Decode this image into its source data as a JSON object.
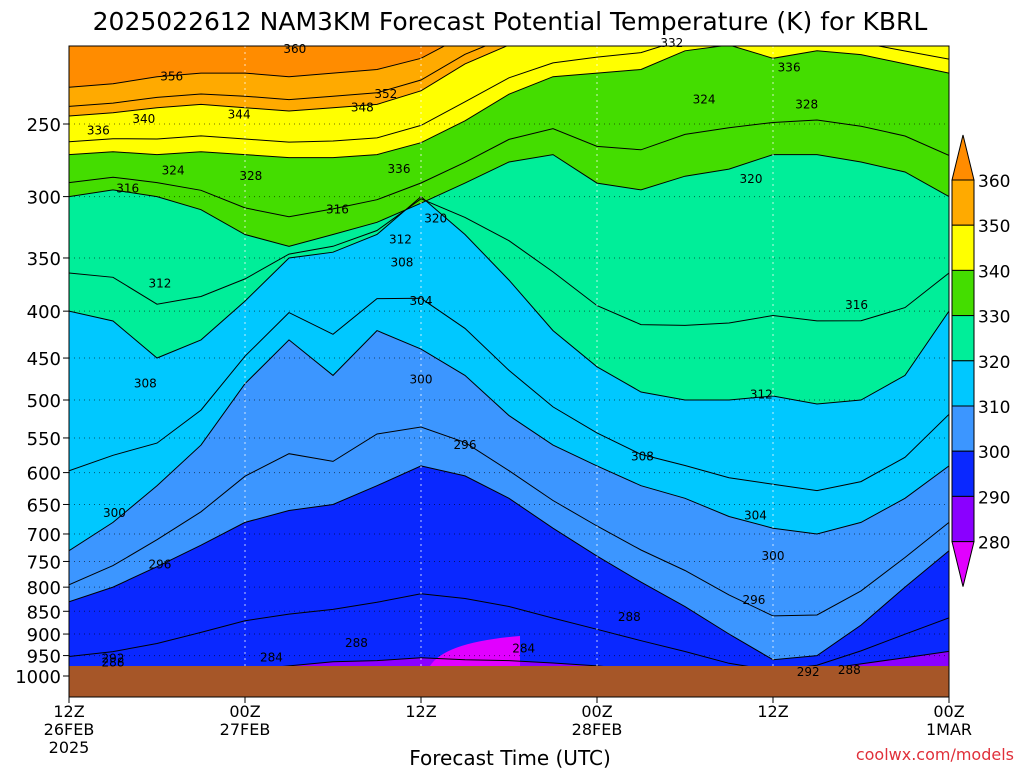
{
  "title": "2025022612 NAM3KM Forecast Potential Temperature (K) for KBRL",
  "credit": "coolwx.com/models",
  "chart_data": {
    "type": "contour-fill",
    "title": "2025022612 NAM3KM Forecast Potential Temperature (K) for KBRL",
    "xlabel": "Forecast Time (UTC)",
    "ylabel": "",
    "x_ticks": [
      {
        "hour": 0,
        "lines": [
          "12Z",
          "26FEB",
          "2025"
        ]
      },
      {
        "hour": 12,
        "lines": [
          "00Z",
          "27FEB"
        ]
      },
      {
        "hour": 24,
        "lines": [
          "12Z"
        ]
      },
      {
        "hour": 36,
        "lines": [
          "00Z",
          "28FEB"
        ]
      },
      {
        "hour": 48,
        "lines": [
          "12Z"
        ]
      },
      {
        "hour": 60,
        "lines": [
          "00Z",
          "1MAR"
        ]
      }
    ],
    "xlim": [
      0,
      60
    ],
    "y_ticks": [
      "250",
      "300",
      "350",
      "400",
      "450",
      "500",
      "550",
      "600",
      "650",
      "700",
      "750",
      "800",
      "850",
      "900",
      "950",
      "1000"
    ],
    "ylim": [
      1025,
      200
    ],
    "grid": "dotted",
    "colorbar": {
      "labels": [
        "360",
        "350",
        "340",
        "330",
        "320",
        "310",
        "300",
        "290",
        "280"
      ],
      "colors": [
        "#ff8c00",
        "#ffaa00",
        "#ffff00",
        "#44dd00",
        "#00ee99",
        "#00c8ff",
        "#3c96ff",
        "#0a28ff",
        "#8a00ff",
        "#e100ff"
      ]
    },
    "contour_labels": [
      {
        "text": "360",
        "hour": 15.4,
        "p": 207
      },
      {
        "text": "356",
        "hour": 7.0,
        "p": 222
      },
      {
        "text": "352",
        "hour": 21.6,
        "p": 232
      },
      {
        "text": "348",
        "hour": 20.0,
        "p": 240
      },
      {
        "text": "344",
        "hour": 11.6,
        "p": 244
      },
      {
        "text": "340",
        "hour": 5.1,
        "p": 247
      },
      {
        "text": "336",
        "hour": 2.0,
        "p": 254
      },
      {
        "text": "336",
        "hour": 22.5,
        "p": 280
      },
      {
        "text": "336",
        "hour": 49.1,
        "p": 217
      },
      {
        "text": "332",
        "hour": 41.1,
        "p": 204
      },
      {
        "text": "328",
        "hour": 12.4,
        "p": 285
      },
      {
        "text": "328",
        "hour": 50.3,
        "p": 238
      },
      {
        "text": "324",
        "hour": 7.1,
        "p": 281
      },
      {
        "text": "324",
        "hour": 43.3,
        "p": 235
      },
      {
        "text": "320",
        "hour": 25.0,
        "p": 317
      },
      {
        "text": "320",
        "hour": 46.5,
        "p": 287
      },
      {
        "text": "316",
        "hour": 4.0,
        "p": 294
      },
      {
        "text": "316",
        "hour": 18.3,
        "p": 310
      },
      {
        "text": "316",
        "hour": 53.7,
        "p": 394
      },
      {
        "text": "312",
        "hour": 6.2,
        "p": 373
      },
      {
        "text": "312",
        "hour": 22.6,
        "p": 334
      },
      {
        "text": "312",
        "hour": 47.2,
        "p": 493
      },
      {
        "text": "308",
        "hour": 22.7,
        "p": 354
      },
      {
        "text": "308",
        "hour": 5.2,
        "p": 480
      },
      {
        "text": "308",
        "hour": 39.1,
        "p": 576
      },
      {
        "text": "304",
        "hour": 24.0,
        "p": 390
      },
      {
        "text": "304",
        "hour": 46.8,
        "p": 668
      },
      {
        "text": "300",
        "hour": 24.0,
        "p": 475
      },
      {
        "text": "300",
        "hour": 3.1,
        "p": 664
      },
      {
        "text": "300",
        "hour": 48.0,
        "p": 740
      },
      {
        "text": "296",
        "hour": 27.0,
        "p": 560
      },
      {
        "text": "296",
        "hour": 6.2,
        "p": 756
      },
      {
        "text": "296",
        "hour": 46.7,
        "p": 826
      },
      {
        "text": "292",
        "hour": 3.0,
        "p": 957
      },
      {
        "text": "292",
        "hour": 50.4,
        "p": 990
      },
      {
        "text": "288",
        "hour": 3.0,
        "p": 967
      },
      {
        "text": "288",
        "hour": 19.6,
        "p": 920
      },
      {
        "text": "288",
        "hour": 38.2,
        "p": 862
      },
      {
        "text": "288",
        "hour": 53.2,
        "p": 985
      },
      {
        "text": "284",
        "hour": 13.8,
        "p": 955
      },
      {
        "text": "284",
        "hour": 31.0,
        "p": 933
      }
    ]
  }
}
